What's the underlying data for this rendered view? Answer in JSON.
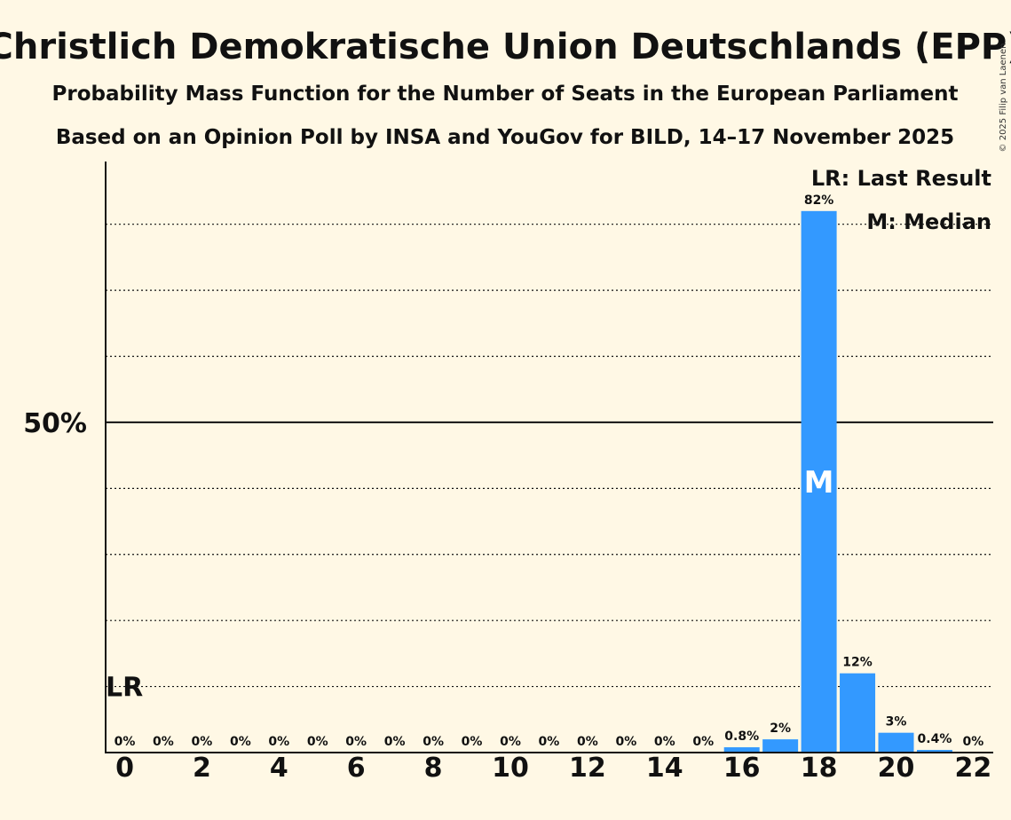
{
  "chart_data": {
    "type": "bar",
    "title": "Christlich Demokratische Union Deutschlands (EPP)",
    "subtitle": "Probability Mass Function for the Number of Seats in the European Parliament",
    "subtitle2": "Based on an Opinion Poll by INSA and YouGov for BILD, 14–17 November 2025",
    "copyright": "© 2025 Filip van Laenen",
    "x": [
      0,
      1,
      2,
      3,
      4,
      5,
      6,
      7,
      8,
      9,
      10,
      11,
      12,
      13,
      14,
      15,
      16,
      17,
      18,
      19,
      20,
      21,
      22
    ],
    "values": [
      0,
      0,
      0,
      0,
      0,
      0,
      0,
      0,
      0,
      0,
      0,
      0,
      0,
      0,
      0,
      0,
      0.8,
      2,
      82,
      12,
      3,
      0.4,
      0
    ],
    "bar_labels": [
      "0%",
      "0%",
      "0%",
      "0%",
      "0%",
      "0%",
      "0%",
      "0%",
      "0%",
      "0%",
      "0%",
      "0%",
      "0%",
      "0%",
      "0%",
      "0%",
      "0.8%",
      "2%",
      "82%",
      "12%",
      "3%",
      "0.4%",
      "0%"
    ],
    "x_tick_labels": [
      "0",
      "2",
      "4",
      "6",
      "8",
      "10",
      "12",
      "14",
      "16",
      "18",
      "20",
      "22"
    ],
    "x_tick_values": [
      0,
      2,
      4,
      6,
      8,
      10,
      12,
      14,
      16,
      18,
      20,
      22
    ],
    "y_tick_label": "50%",
    "y_tick_value": 50,
    "ylim": [
      0,
      89.5
    ],
    "gridlines": [
      10,
      20,
      30,
      40,
      60,
      70,
      80
    ],
    "median_seat": 18,
    "median_mark": "M",
    "last_result_seat": 0,
    "last_result_value": 10,
    "last_result_mark": "LR",
    "legend": {
      "position": "top-right",
      "lr": "LR: Last Result",
      "median": "M: Median"
    },
    "colors": {
      "bar": "#3399FF",
      "background": "#FFF8E5",
      "axis": "#111111"
    }
  }
}
